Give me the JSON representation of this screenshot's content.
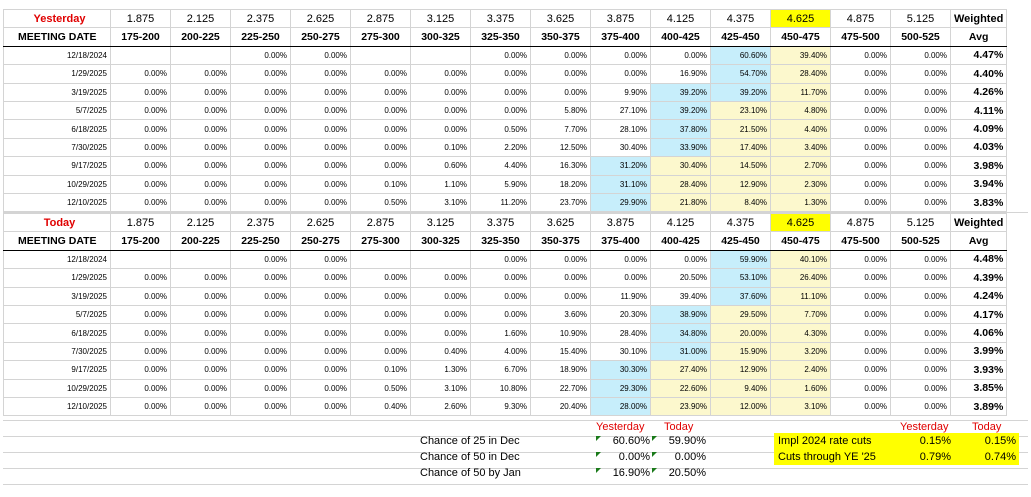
{
  "rates": [
    "1.875",
    "2.125",
    "2.375",
    "2.625",
    "2.875",
    "3.125",
    "3.375",
    "3.625",
    "3.875",
    "4.125",
    "4.375",
    "4.625",
    "4.875",
    "5.125"
  ],
  "weighted_label": "Weighted",
  "meeting_date_label": "MEETING DATE",
  "ranges": [
    "175-200",
    "200-225",
    "225-250",
    "250-275",
    "275-300",
    "300-325",
    "325-350",
    "350-375",
    "375-400",
    "400-425",
    "425-450",
    "450-475",
    "475-500",
    "500-525"
  ],
  "avg_label": "Avg",
  "yesterday": {
    "label": "Yesterday",
    "rows": [
      {
        "date": "12/18/2024",
        "vals": [
          "",
          "",
          "0.00%",
          "0.00%",
          "",
          "",
          "0.00%",
          "0.00%",
          "0.00%",
          "0.00%",
          "60.60%",
          "39.40%",
          "0.00%",
          "0.00%"
        ],
        "avg": "4.47%"
      },
      {
        "date": "1/29/2025",
        "vals": [
          "0.00%",
          "0.00%",
          "0.00%",
          "0.00%",
          "0.00%",
          "0.00%",
          "0.00%",
          "0.00%",
          "0.00%",
          "16.90%",
          "54.70%",
          "28.40%",
          "0.00%",
          "0.00%"
        ],
        "avg": "4.40%"
      },
      {
        "date": "3/19/2025",
        "vals": [
          "0.00%",
          "0.00%",
          "0.00%",
          "0.00%",
          "0.00%",
          "0.00%",
          "0.00%",
          "0.00%",
          "9.90%",
          "39.20%",
          "39.20%",
          "11.70%",
          "0.00%",
          "0.00%"
        ],
        "avg": "4.26%"
      },
      {
        "date": "5/7/2025",
        "vals": [
          "0.00%",
          "0.00%",
          "0.00%",
          "0.00%",
          "0.00%",
          "0.00%",
          "0.00%",
          "5.80%",
          "27.10%",
          "39.20%",
          "23.10%",
          "4.80%",
          "0.00%",
          "0.00%"
        ],
        "avg": "4.11%"
      },
      {
        "date": "6/18/2025",
        "vals": [
          "0.00%",
          "0.00%",
          "0.00%",
          "0.00%",
          "0.00%",
          "0.00%",
          "0.50%",
          "7.70%",
          "28.10%",
          "37.80%",
          "21.50%",
          "4.40%",
          "0.00%",
          "0.00%"
        ],
        "avg": "4.09%"
      },
      {
        "date": "7/30/2025",
        "vals": [
          "0.00%",
          "0.00%",
          "0.00%",
          "0.00%",
          "0.00%",
          "0.10%",
          "2.20%",
          "12.50%",
          "30.40%",
          "33.90%",
          "17.40%",
          "3.40%",
          "0.00%",
          "0.00%"
        ],
        "avg": "4.03%"
      },
      {
        "date": "9/17/2025",
        "vals": [
          "0.00%",
          "0.00%",
          "0.00%",
          "0.00%",
          "0.00%",
          "0.60%",
          "4.40%",
          "16.30%",
          "31.20%",
          "30.40%",
          "14.50%",
          "2.70%",
          "0.00%",
          "0.00%"
        ],
        "avg": "3.98%"
      },
      {
        "date": "10/29/2025",
        "vals": [
          "0.00%",
          "0.00%",
          "0.00%",
          "0.00%",
          "0.10%",
          "1.10%",
          "5.90%",
          "18.20%",
          "31.10%",
          "28.40%",
          "12.90%",
          "2.30%",
          "0.00%",
          "0.00%"
        ],
        "avg": "3.94%"
      },
      {
        "date": "12/10/2025",
        "vals": [
          "0.00%",
          "0.00%",
          "0.00%",
          "0.00%",
          "0.50%",
          "3.10%",
          "11.20%",
          "23.70%",
          "29.90%",
          "21.80%",
          "8.40%",
          "1.30%",
          "0.00%",
          "0.00%"
        ],
        "avg": "3.83%"
      }
    ]
  },
  "today": {
    "label": "Today",
    "rows": [
      {
        "date": "12/18/2024",
        "vals": [
          "",
          "",
          "0.00%",
          "0.00%",
          "",
          "",
          "0.00%",
          "0.00%",
          "0.00%",
          "0.00%",
          "59.90%",
          "40.10%",
          "0.00%",
          "0.00%"
        ],
        "avg": "4.48%"
      },
      {
        "date": "1/29/2025",
        "vals": [
          "0.00%",
          "0.00%",
          "0.00%",
          "0.00%",
          "0.00%",
          "0.00%",
          "0.00%",
          "0.00%",
          "0.00%",
          "20.50%",
          "53.10%",
          "26.40%",
          "0.00%",
          "0.00%"
        ],
        "avg": "4.39%"
      },
      {
        "date": "3/19/2025",
        "vals": [
          "0.00%",
          "0.00%",
          "0.00%",
          "0.00%",
          "0.00%",
          "0.00%",
          "0.00%",
          "0.00%",
          "11.90%",
          "39.40%",
          "37.60%",
          "11.10%",
          "0.00%",
          "0.00%"
        ],
        "avg": "4.24%"
      },
      {
        "date": "5/7/2025",
        "vals": [
          "0.00%",
          "0.00%",
          "0.00%",
          "0.00%",
          "0.00%",
          "0.00%",
          "0.00%",
          "3.60%",
          "20.30%",
          "38.90%",
          "29.50%",
          "7.70%",
          "0.00%",
          "0.00%"
        ],
        "avg": "4.17%"
      },
      {
        "date": "6/18/2025",
        "vals": [
          "0.00%",
          "0.00%",
          "0.00%",
          "0.00%",
          "0.00%",
          "0.00%",
          "1.60%",
          "10.90%",
          "28.40%",
          "34.80%",
          "20.00%",
          "4.30%",
          "0.00%",
          "0.00%"
        ],
        "avg": "4.06%"
      },
      {
        "date": "7/30/2025",
        "vals": [
          "0.00%",
          "0.00%",
          "0.00%",
          "0.00%",
          "0.00%",
          "0.40%",
          "4.00%",
          "15.40%",
          "30.10%",
          "31.00%",
          "15.90%",
          "3.20%",
          "0.00%",
          "0.00%"
        ],
        "avg": "3.99%"
      },
      {
        "date": "9/17/2025",
        "vals": [
          "0.00%",
          "0.00%",
          "0.00%",
          "0.00%",
          "0.10%",
          "1.30%",
          "6.70%",
          "18.90%",
          "30.30%",
          "27.40%",
          "12.90%",
          "2.40%",
          "0.00%",
          "0.00%"
        ],
        "avg": "3.93%"
      },
      {
        "date": "10/29/2025",
        "vals": [
          "0.00%",
          "0.00%",
          "0.00%",
          "0.00%",
          "0.50%",
          "3.10%",
          "10.80%",
          "22.70%",
          "29.30%",
          "22.60%",
          "9.40%",
          "1.60%",
          "0.00%",
          "0.00%"
        ],
        "avg": "3.85%"
      },
      {
        "date": "12/10/2025",
        "vals": [
          "0.00%",
          "0.00%",
          "0.00%",
          "0.00%",
          "0.40%",
          "2.60%",
          "9.30%",
          "20.40%",
          "28.00%",
          "23.90%",
          "12.00%",
          "3.10%",
          "0.00%",
          "0.00%"
        ],
        "avg": "3.89%"
      }
    ]
  },
  "summary": {
    "col_yesterday": "Yesterday",
    "col_today": "Today",
    "rows": [
      {
        "label": "Chance of 25 in Dec",
        "yesterday": "60.60%",
        "today": "59.90%"
      },
      {
        "label": "Chance of 50 in Dec",
        "yesterday": "0.00%",
        "today": "0.00%"
      },
      {
        "label": "Chance of 50 by Jan",
        "yesterday": "16.90%",
        "today": "20.50%"
      }
    ]
  },
  "cuts": {
    "col_yesterday": "Yesterday",
    "col_today": "Today",
    "rows": [
      {
        "label": "Impl  2024 rate cuts",
        "yesterday": "0.15%",
        "today": "0.15%"
      },
      {
        "label": "Cuts through YE '25",
        "yesterday": "0.79%",
        "today": "0.74%"
      }
    ]
  },
  "colors": {
    "highlight_yellow": "#ffff00",
    "blue_cell": "#c7eefb",
    "cream_cell": "#fcf8cd",
    "label_red": "#e00000"
  }
}
